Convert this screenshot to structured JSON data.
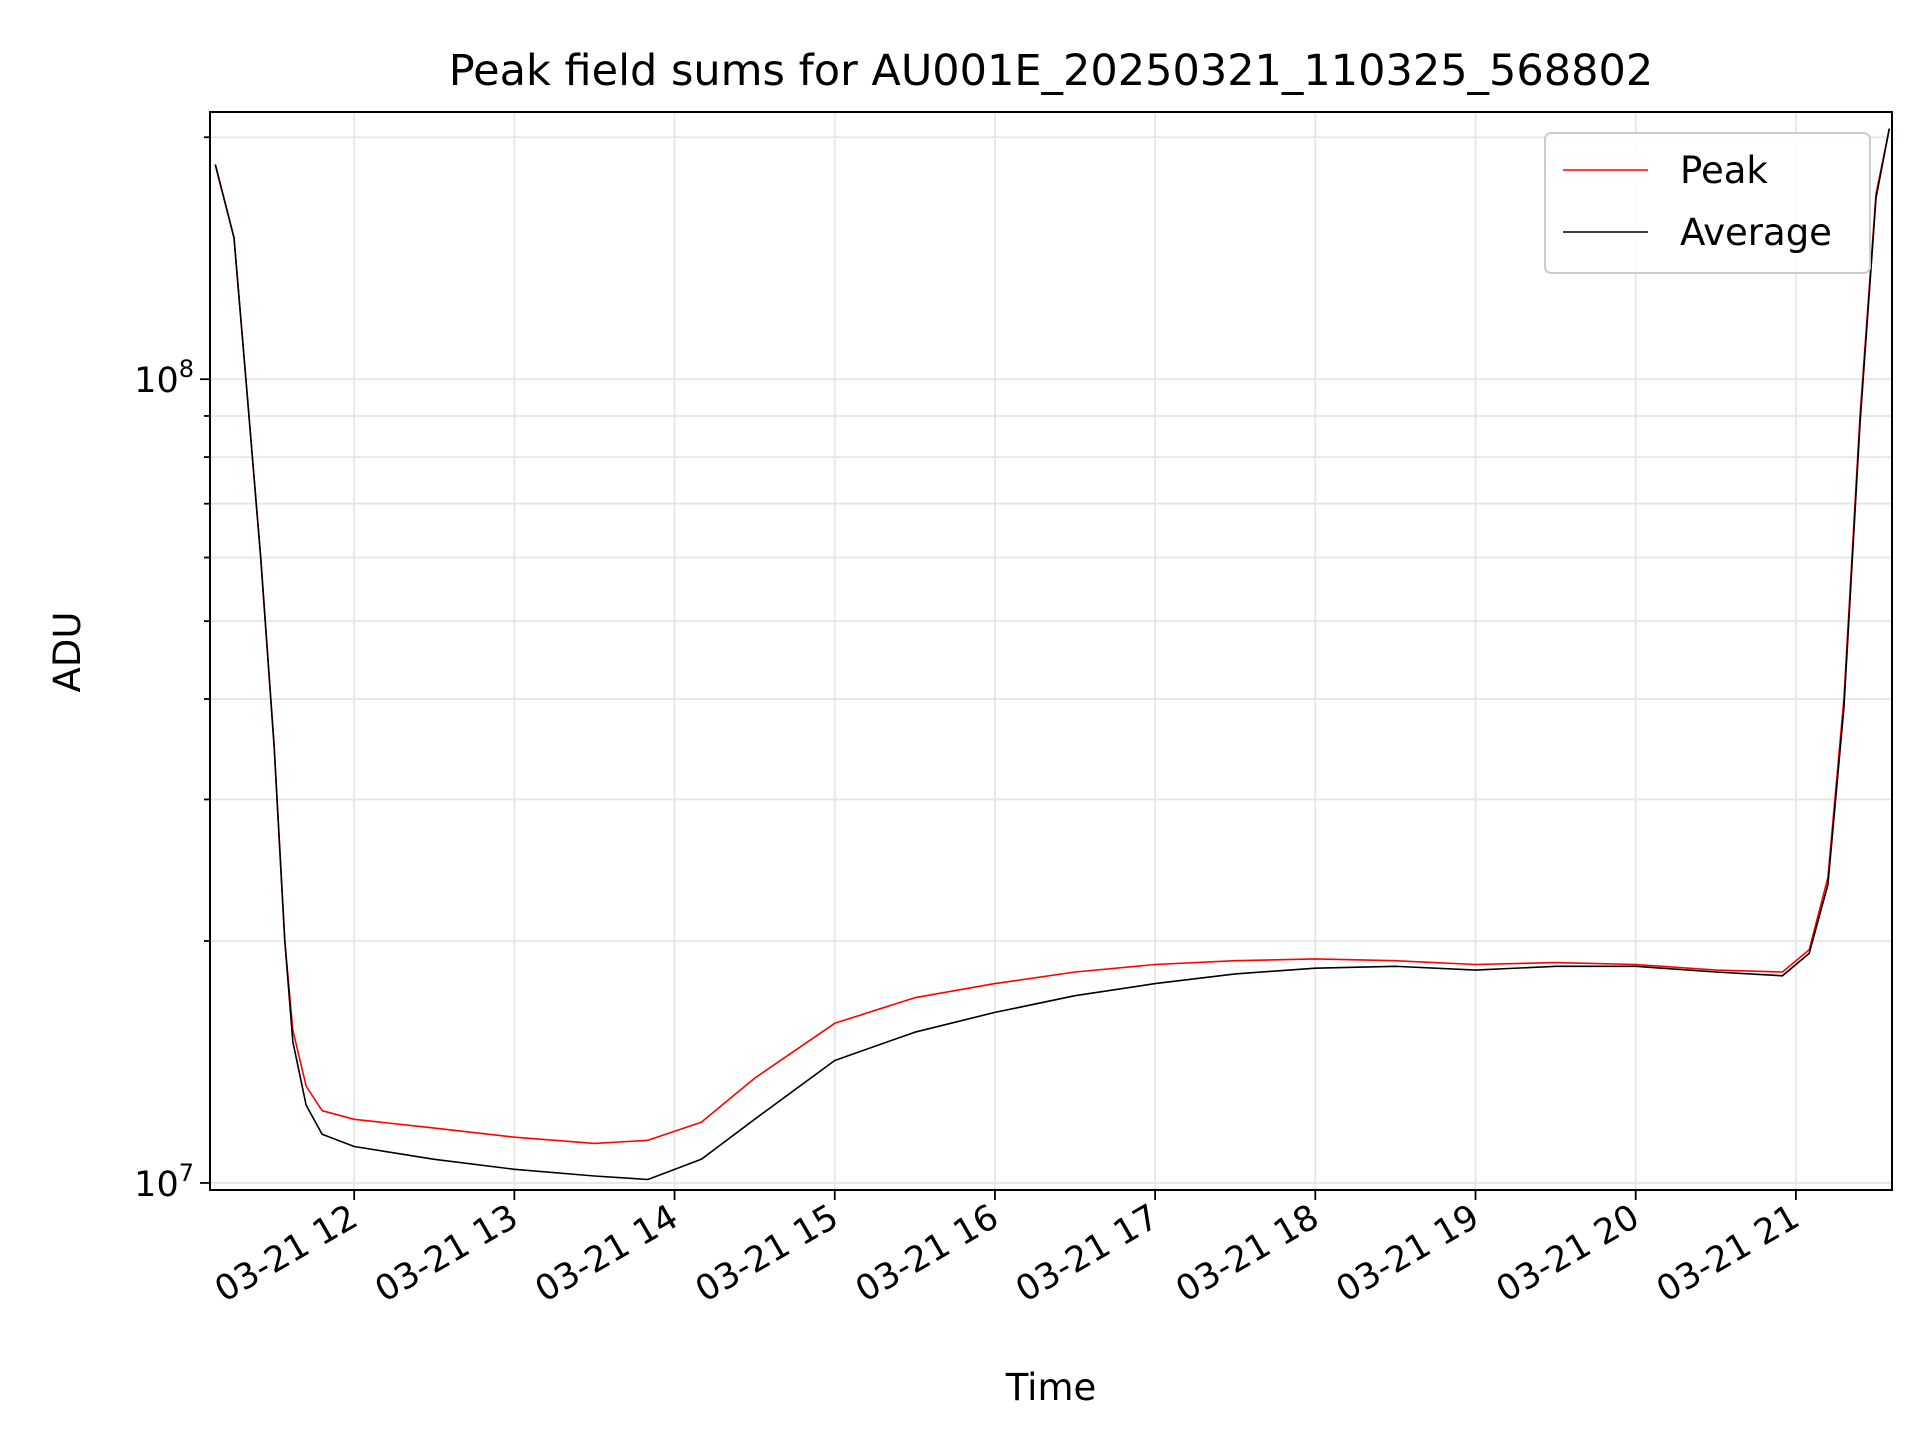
{
  "chart_data": {
    "type": "line",
    "title": "Peak field sums for AU001E_20250321_110325_568802",
    "xlabel": "Time",
    "ylabel": "ADU",
    "y_scale": "log",
    "ylim": [
      9800000,
      215000000
    ],
    "xlim": [
      "2025-03-21 11:06",
      "2025-03-21 21:36"
    ],
    "x_ticks": [
      "2025-03-21 12:00",
      "2025-03-21 13:00",
      "2025-03-21 14:00",
      "2025-03-21 15:00",
      "2025-03-21 16:00",
      "2025-03-21 17:00",
      "2025-03-21 18:00",
      "2025-03-21 19:00",
      "2025-03-21 20:00",
      "2025-03-21 21:00"
    ],
    "x_tick_labels": [
      "03-21 12",
      "03-21 13",
      "03-21 14",
      "03-21 15",
      "03-21 16",
      "03-21 17",
      "03-21 18",
      "03-21 19",
      "03-21 20",
      "03-21 21"
    ],
    "y_tick_labels": [
      {
        "value": 10000000,
        "base": "10",
        "exp": "7"
      },
      {
        "value": 100000000,
        "base": "10",
        "exp": "8"
      }
    ],
    "grid": true,
    "legend_position": "top-right",
    "series": [
      {
        "name": "Peak",
        "color": "#ff0000",
        "x": [
          "2025-03-21 11:08",
          "2025-03-21 11:15",
          "2025-03-21 11:20",
          "2025-03-21 11:25",
          "2025-03-21 11:30",
          "2025-03-21 11:34",
          "2025-03-21 11:37",
          "2025-03-21 11:42",
          "2025-03-21 11:48",
          "2025-03-21 12:00",
          "2025-03-21 12:30",
          "2025-03-21 13:00",
          "2025-03-21 13:30",
          "2025-03-21 13:50",
          "2025-03-21 14:10",
          "2025-03-21 14:30",
          "2025-03-21 15:00",
          "2025-03-21 15:30",
          "2025-03-21 16:00",
          "2025-03-21 16:30",
          "2025-03-21 17:00",
          "2025-03-21 17:30",
          "2025-03-21 18:00",
          "2025-03-21 18:30",
          "2025-03-21 19:00",
          "2025-03-21 19:30",
          "2025-03-21 20:00",
          "2025-03-21 20:30",
          "2025-03-21 20:55",
          "2025-03-21 21:05",
          "2025-03-21 21:12",
          "2025-03-21 21:18",
          "2025-03-21 21:24",
          "2025-03-21 21:30",
          "2025-03-21 21:35"
        ],
        "y": [
          185000000,
          150000000,
          95000000,
          60000000,
          35000000,
          20000000,
          15500000,
          13200000,
          12300000,
          12000000,
          11700000,
          11400000,
          11200000,
          11300000,
          11900000,
          13500000,
          15800000,
          17000000,
          17700000,
          18300000,
          18700000,
          18900000,
          19000000,
          18900000,
          18700000,
          18800000,
          18700000,
          18400000,
          18300000,
          19500000,
          24000000,
          40000000,
          90000000,
          170000000,
          205000000
        ]
      },
      {
        "name": "Average",
        "color": "#000000",
        "x": [
          "2025-03-21 11:08",
          "2025-03-21 11:15",
          "2025-03-21 11:20",
          "2025-03-21 11:25",
          "2025-03-21 11:30",
          "2025-03-21 11:34",
          "2025-03-21 11:37",
          "2025-03-21 11:42",
          "2025-03-21 11:48",
          "2025-03-21 12:00",
          "2025-03-21 12:30",
          "2025-03-21 13:00",
          "2025-03-21 13:30",
          "2025-03-21 13:50",
          "2025-03-21 14:10",
          "2025-03-21 14:30",
          "2025-03-21 15:00",
          "2025-03-21 15:30",
          "2025-03-21 16:00",
          "2025-03-21 16:30",
          "2025-03-21 17:00",
          "2025-03-21 17:30",
          "2025-03-21 18:00",
          "2025-03-21 18:30",
          "2025-03-21 19:00",
          "2025-03-21 19:30",
          "2025-03-21 20:00",
          "2025-03-21 20:30",
          "2025-03-21 20:55",
          "2025-03-21 21:05",
          "2025-03-21 21:12",
          "2025-03-21 21:18",
          "2025-03-21 21:24",
          "2025-03-21 21:30",
          "2025-03-21 21:35"
        ],
        "y": [
          185000000,
          150000000,
          95000000,
          60000000,
          35000000,
          20000000,
          15000000,
          12500000,
          11500000,
          11100000,
          10700000,
          10400000,
          10200000,
          10100000,
          10700000,
          12000000,
          14200000,
          15400000,
          16300000,
          17100000,
          17700000,
          18200000,
          18500000,
          18600000,
          18400000,
          18600000,
          18600000,
          18300000,
          18100000,
          19300000,
          23500000,
          39000000,
          88000000,
          168000000,
          205000000
        ]
      }
    ]
  }
}
